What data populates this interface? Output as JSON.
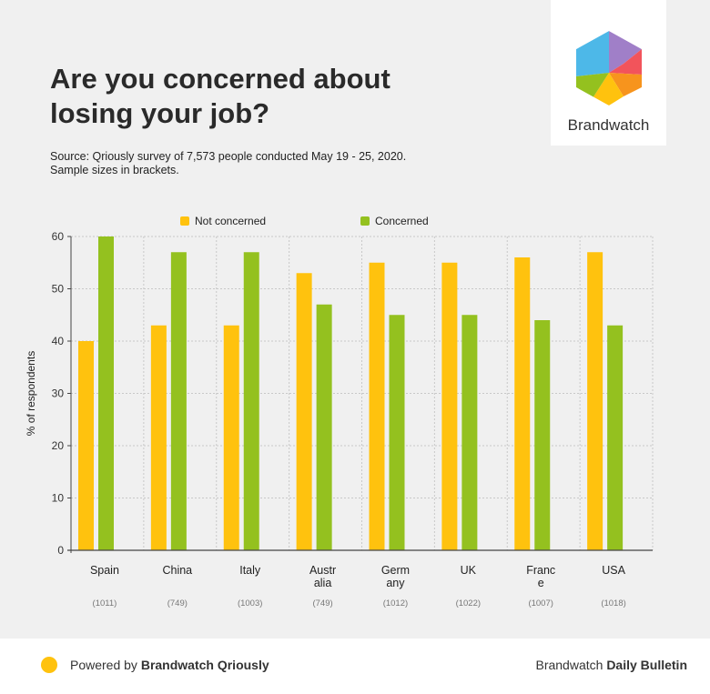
{
  "header": {
    "title": "Are you concerned about losing your job?",
    "source_line1": "Source: Qriously survey of 7,573 people conducted May 19 - 25, 2020.",
    "source_line2": "Sample sizes in brackets."
  },
  "logo": {
    "wordmark": "Brandwatch"
  },
  "footer": {
    "powered_prefix": "Powered by ",
    "powered_brand": "Brandwatch Qriously",
    "bulletin_prefix": "Brandwatch ",
    "bulletin_name": "Daily Bulletin"
  },
  "colors": {
    "not_concerned": "#ffc20e",
    "concerned": "#94c11f",
    "axis": "#444444",
    "grid": "#c8c8c8"
  },
  "chart_data": {
    "type": "bar",
    "title": "",
    "xlabel": "",
    "ylabel": "% of respondents",
    "ylim": [
      0,
      60
    ],
    "yticks": [
      0,
      10,
      20,
      30,
      40,
      50,
      60
    ],
    "grid": true,
    "legend_position": "top",
    "categories": [
      [
        "Spain"
      ],
      [
        "China"
      ],
      [
        "Italy"
      ],
      [
        "Austr",
        "alia"
      ],
      [
        "Germ",
        "any"
      ],
      [
        "UK"
      ],
      [
        "Franc",
        "e"
      ],
      [
        "USA"
      ]
    ],
    "sample_sizes": [
      "(1011)",
      "(749)",
      "(1003)",
      "(749)",
      "(1012)",
      "(1022)",
      "(1007)",
      "(1018)"
    ],
    "series": [
      {
        "name": "Not concerned",
        "values": [
          40,
          43,
          43,
          53,
          55,
          55,
          56,
          57
        ]
      },
      {
        "name": "Concerned",
        "values": [
          60,
          57,
          57,
          47,
          45,
          45,
          44,
          43
        ]
      }
    ]
  }
}
